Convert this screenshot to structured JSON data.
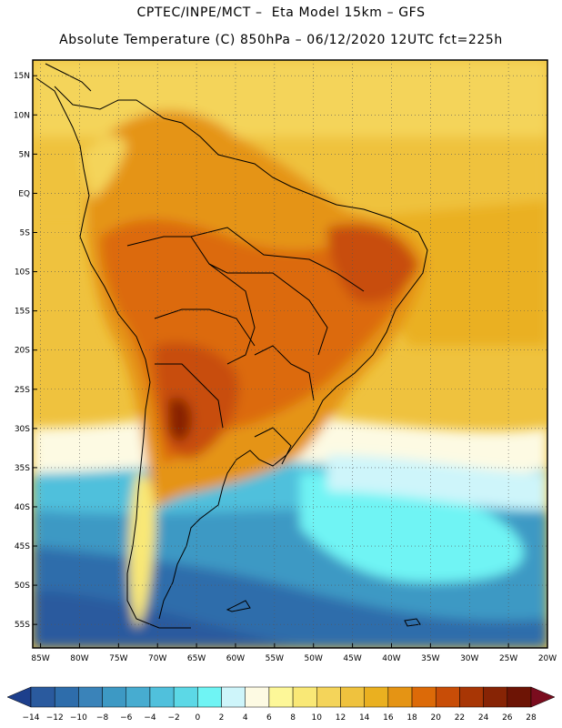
{
  "header": {
    "line1": "CPTEC/INPE/MCT –  Eta Model 15km – GFS",
    "line2": "Absolute Temperature (C) 850hPa – 06/12/2020 12UTC fct=225h"
  },
  "map": {
    "lon_range": [
      -86,
      -20
    ],
    "lat_range": [
      -58,
      17
    ],
    "y_ticks": [
      {
        "label": "15N",
        "lat": 15
      },
      {
        "label": "10N",
        "lat": 10
      },
      {
        "label": "5N",
        "lat": 5
      },
      {
        "label": "EQ",
        "lat": 0
      },
      {
        "label": "5S",
        "lat": -5
      },
      {
        "label": "10S",
        "lat": -10
      },
      {
        "label": "15S",
        "lat": -15
      },
      {
        "label": "20S",
        "lat": -20
      },
      {
        "label": "25S",
        "lat": -25
      },
      {
        "label": "30S",
        "lat": -30
      },
      {
        "label": "35S",
        "lat": -35
      },
      {
        "label": "40S",
        "lat": -40
      },
      {
        "label": "45S",
        "lat": -45
      },
      {
        "label": "50S",
        "lat": -50
      },
      {
        "label": "55S",
        "lat": -55
      }
    ],
    "x_ticks": [
      {
        "label": "85W",
        "lon": -85
      },
      {
        "label": "80W",
        "lon": -80
      },
      {
        "label": "75W",
        "lon": -75
      },
      {
        "label": "70W",
        "lon": -70
      },
      {
        "label": "65W",
        "lon": -65
      },
      {
        "label": "60W",
        "lon": -60
      },
      {
        "label": "55W",
        "lon": -55
      },
      {
        "label": "50W",
        "lon": -50
      },
      {
        "label": "45W",
        "lon": -45
      },
      {
        "label": "40W",
        "lon": -40
      },
      {
        "label": "35W",
        "lon": -35
      },
      {
        "label": "30W",
        "lon": -30
      },
      {
        "label": "25W",
        "lon": -25
      },
      {
        "label": "20W",
        "lon": -20
      }
    ]
  },
  "colorbar": {
    "unit": "C",
    "labels": [
      "-14",
      "-12",
      "-10",
      "-8",
      "-6",
      "-4",
      "-2",
      "0",
      "2",
      "4",
      "6",
      "8",
      "10",
      "12",
      "14",
      "16",
      "18",
      "20",
      "22",
      "24",
      "26",
      "28"
    ],
    "colors": [
      "#1d3f8c",
      "#2a5a9e",
      "#2e6dab",
      "#3a83b9",
      "#3d99c4",
      "#47acd0",
      "#50c0dc",
      "#5cd8e6",
      "#6ff4f4",
      "#cef5fa",
      "#fdfae3",
      "#fdf798",
      "#f9e876",
      "#f4d45a",
      "#efc23e",
      "#eab020",
      "#e59414",
      "#dc6a08",
      "#c84d07",
      "#a83605",
      "#872405",
      "#6d1405",
      "#7a0c1e"
    ]
  }
}
